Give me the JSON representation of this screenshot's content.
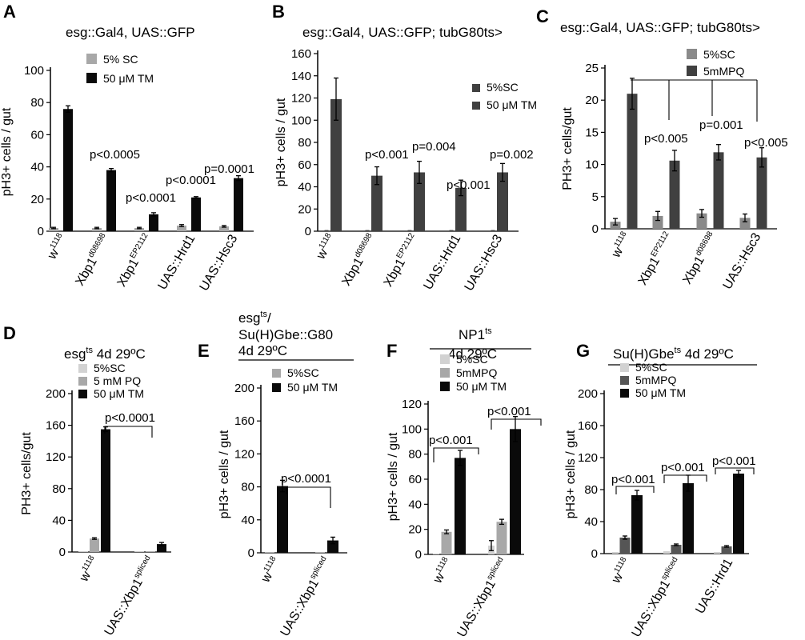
{
  "colors": {
    "sc": "#a8a8a8",
    "tm": "#0a0a0a",
    "dark": "#404040",
    "light": "#d2d2d2",
    "mid": "#a0a0a0"
  },
  "chart_data": [
    {
      "panel": "A",
      "type": "bar",
      "title": "esg::Gal4, UAS::GFP",
      "ylabel": "pH3+ cells / gut",
      "ylim": [
        0,
        100
      ],
      "yticks": [
        0,
        20,
        40,
        60,
        80,
        100
      ],
      "categories": [
        {
          "main": "w",
          "sup": "1118"
        },
        {
          "main": "Xbp1",
          "sup": "d08698"
        },
        {
          "main": "Xbp1",
          "sup": "EP2112"
        },
        {
          "main": "UAS::Hrd1",
          "sup": ""
        },
        {
          "main": "UAS::Hsc3",
          "sup": ""
        }
      ],
      "series": [
        {
          "name": "5% SC",
          "values": [
            2,
            2,
            2,
            3.5,
            3
          ],
          "errors": [
            0.4,
            0.4,
            0.4,
            0.6,
            0.5
          ]
        },
        {
          "name": "50 μM TM",
          "values": [
            76,
            38,
            10.5,
            21,
            33
          ],
          "errors": [
            2,
            1,
            1,
            0.5,
            1.5
          ]
        }
      ],
      "annotations": [
        "p<0.0005",
        "p<0.0001",
        "p<0.0001",
        "p=0.0001"
      ]
    },
    {
      "panel": "B",
      "type": "bar",
      "title": "esg::Gal4, UAS::GFP; tubG80ts>",
      "ylabel": "pH3+ cells / gut",
      "ylim": [
        0,
        160
      ],
      "yticks": [
        0,
        20,
        40,
        60,
        80,
        100,
        120,
        140,
        160
      ],
      "categories": [
        {
          "main": "w",
          "sup": "1118"
        },
        {
          "main": "Xbp1",
          "sup": "d08698"
        },
        {
          "main": "Xbp1",
          "sup": "EP2112"
        },
        {
          "main": "UAS::Hrd1",
          "sup": ""
        },
        {
          "main": "UAS::Hsc3",
          "sup": ""
        }
      ],
      "series": [
        {
          "name": "5%SC",
          "values": [
            1,
            1,
            1,
            1,
            1
          ],
          "errors": [
            0,
            0,
            0,
            0,
            0
          ]
        },
        {
          "name": "50 μM TM",
          "values": [
            119,
            50,
            53,
            39,
            53
          ],
          "errors": [
            19,
            8,
            10,
            7,
            8
          ]
        }
      ],
      "annotations": [
        "p<0.001",
        "p=0.004",
        "p<0.001",
        "p=0.002"
      ]
    },
    {
      "panel": "C",
      "type": "bar",
      "title": "esg::Gal4, UAS::GFP; tubG80ts>",
      "ylabel": "PH3+ cells/gut",
      "ylim": [
        0,
        25
      ],
      "yticks": [
        0,
        5,
        10,
        15,
        20,
        25
      ],
      "categories": [
        {
          "main": "w",
          "sup": "1118"
        },
        {
          "main": "Xbp1",
          "sup": "EP2112"
        },
        {
          "main": "Xbp1",
          "sup": "d08698"
        },
        {
          "main": "UAS::Hsc3",
          "sup": ""
        }
      ],
      "series": [
        {
          "name": "5%SC",
          "values": [
            1.1,
            2.0,
            2.4,
            1.7
          ],
          "errors": [
            0.5,
            0.7,
            0.6,
            0.6
          ]
        },
        {
          "name": "5mMPQ",
          "values": [
            21,
            10.6,
            11.9,
            11.1
          ],
          "errors": [
            2.4,
            1.6,
            1.2,
            1.5
          ]
        }
      ],
      "annotations": [
        "p<0.005",
        "p=0.001",
        "p<0.005"
      ]
    },
    {
      "panel": "D",
      "type": "bar",
      "title": "esgts 4d 29ºC",
      "ylabel": "PH3+ cells/gut",
      "ylim": [
        0,
        200
      ],
      "yticks": [
        0,
        40,
        80,
        120,
        160,
        200
      ],
      "categories": [
        {
          "main": "w",
          "sup": "1118"
        },
        {
          "main": "UAS::Xbp1",
          "sup": "spliced"
        }
      ],
      "series": [
        {
          "name": "5%SC",
          "values": [
            0,
            0
          ],
          "errors": [
            0,
            0
          ]
        },
        {
          "name": "5 mM PQ",
          "values": [
            17,
            0.5
          ],
          "errors": [
            1,
            0
          ]
        },
        {
          "name": "50 μM TM",
          "values": [
            155,
            10
          ],
          "errors": [
            3,
            2
          ]
        }
      ],
      "annotations": [
        "p<0.0001"
      ]
    },
    {
      "panel": "E",
      "type": "bar",
      "title": "esgts/ Su(H)Gbe::G80 4d 29ºC",
      "ylabel": "pH3+ cells / gut",
      "ylim": [
        0,
        200
      ],
      "yticks": [
        0,
        40,
        80,
        120,
        160,
        200
      ],
      "categories": [
        {
          "main": "w",
          "sup": "1118"
        },
        {
          "main": "UAS::Xbp1",
          "sup": "spliced"
        }
      ],
      "series": [
        {
          "name": "5%SC",
          "values": [
            0.5,
            0.5
          ],
          "errors": [
            0,
            0
          ]
        },
        {
          "name": "50 μM TM",
          "values": [
            81,
            15
          ],
          "errors": [
            7,
            4
          ]
        }
      ],
      "annotations": [
        "p<0.0001"
      ]
    },
    {
      "panel": "F",
      "type": "bar",
      "title": "NP1ts 4d 29ºC",
      "ylabel": "pH3+ cells / gut",
      "ylim": [
        0,
        120
      ],
      "yticks": [
        0,
        20,
        40,
        60,
        80,
        100,
        120
      ],
      "categories": [
        {
          "main": "w",
          "sup": "1118"
        },
        {
          "main": "UAS::Xbp1",
          "sup": "spliced"
        }
      ],
      "series": [
        {
          "name": "5%SC",
          "values": [
            0.5,
            7
          ],
          "errors": [
            0,
            4
          ]
        },
        {
          "name": "5mMPQ",
          "values": [
            18,
            26
          ],
          "errors": [
            1.5,
            2
          ]
        },
        {
          "name": "50 μM TM",
          "values": [
            77,
            100
          ],
          "errors": [
            6,
            10
          ]
        }
      ],
      "annotations": [
        "p<0.001",
        "p<0.001"
      ]
    },
    {
      "panel": "G",
      "type": "bar",
      "title": "Su(H)Gbets 4d 29ºC",
      "ylabel": "pH3+ cells / gut",
      "ylim": [
        0,
        200
      ],
      "yticks": [
        0,
        40,
        80,
        120,
        160,
        200
      ],
      "categories": [
        {
          "main": "w",
          "sup": "1118"
        },
        {
          "main": "UAS::Xbp1",
          "sup": "spliced"
        },
        {
          "main": "UAS::Hrd1",
          "sup": ""
        }
      ],
      "series": [
        {
          "name": "5%SC",
          "values": [
            2,
            3,
            2
          ],
          "errors": [
            0,
            0,
            0
          ]
        },
        {
          "name": "5mMPQ",
          "values": [
            20,
            11,
            9
          ],
          "errors": [
            2,
            1,
            1
          ]
        },
        {
          "name": "50 μM TM",
          "values": [
            73,
            88,
            100
          ],
          "errors": [
            6,
            10,
            4
          ]
        }
      ],
      "annotations": [
        "p<0.001",
        "p<0.001",
        "p<0.001"
      ]
    }
  ]
}
